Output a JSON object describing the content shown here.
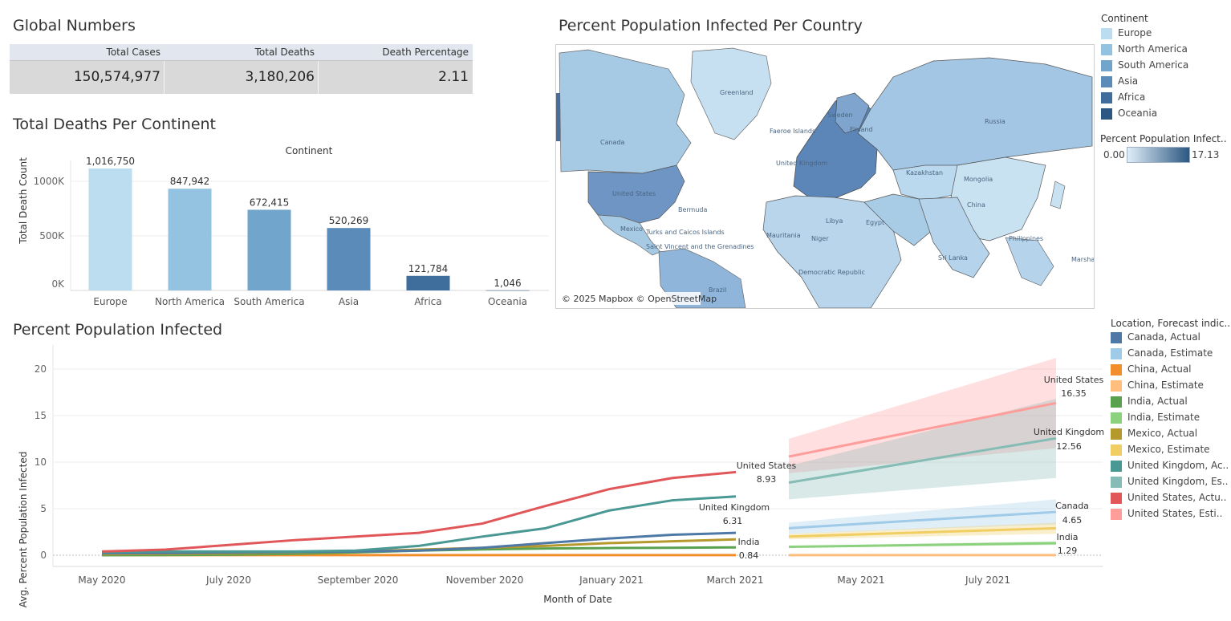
{
  "global": {
    "title": "Global Numbers",
    "headers": [
      "Total Cases",
      "Total Deaths",
      "Death Percentage"
    ],
    "values": [
      "150,574,977",
      "3,180,206",
      "2.11"
    ]
  },
  "deaths": {
    "title": "Total Deaths Per Continent",
    "column_header": "Continent",
    "ylabel": "Total Death Count",
    "yticks": [
      "1000K",
      "500K",
      "0K"
    ]
  },
  "map": {
    "title": "Percent Population Infected Per Country",
    "attribution": "© 2025 Mapbox © OpenStreetMap",
    "labels": [
      "Greenland",
      "Faeroe Islands",
      "Canada",
      "United States",
      "Bermuda",
      "Mexico",
      "Turks and Caicos Islands",
      "Saint Vincent and the Grenadines",
      "Brazil",
      "Russia",
      "Kazakhstan",
      "Mongolia",
      "China",
      "Philippines",
      "Sri Lanka",
      "Mauritania",
      "Niger",
      "Libya",
      "Egypt",
      "Democratic Republic",
      "Finland",
      "Sweden",
      "United Kingdom",
      "Marsha"
    ]
  },
  "continent_legend": {
    "title": "Continent",
    "items": [
      {
        "label": "Europe",
        "color": "#bcdcef"
      },
      {
        "label": "North America",
        "color": "#94c2e1"
      },
      {
        "label": "South America",
        "color": "#71a5cc"
      },
      {
        "label": "Asia",
        "color": "#5a8bb9"
      },
      {
        "label": "Africa",
        "color": "#3f6d9c"
      },
      {
        "label": "Oceania",
        "color": "#2b5782"
      }
    ]
  },
  "pct_legend": {
    "title": "Percent Population Infect..",
    "min": "0.00",
    "max": "17.13"
  },
  "infected": {
    "title": "Percent Population Infected",
    "ylabel": "Avg. Percent Population Infected",
    "xlabel": "Month of Date",
    "yticks": [
      "20",
      "15",
      "10",
      "5",
      "0"
    ],
    "xticks": [
      "May 2020",
      "July 2020",
      "September 2020",
      "November 2020",
      "January 2021",
      "March 2021",
      "May 2021",
      "July 2021"
    ],
    "annotations": [
      {
        "name": "United States",
        "value": "8.93"
      },
      {
        "name": "United Kingdom",
        "value": "6.31"
      },
      {
        "name": "India",
        "value": "0.84"
      },
      {
        "name": "United States",
        "value": "16.35"
      },
      {
        "name": "United Kingdom",
        "value": "12.56"
      },
      {
        "name": "Canada",
        "value": "4.65"
      },
      {
        "name": "India",
        "value": "1.29"
      }
    ]
  },
  "forecast_legend": {
    "title": "Location, Forecast indic..",
    "items": [
      {
        "label": "Canada, Actual",
        "color": "#4e79a7"
      },
      {
        "label": "Canada, Estimate",
        "color": "#a0cbe8"
      },
      {
        "label": "China, Actual",
        "color": "#f28e2b"
      },
      {
        "label": "China, Estimate",
        "color": "#ffbe7d"
      },
      {
        "label": "India, Actual",
        "color": "#59a14f"
      },
      {
        "label": "India, Estimate",
        "color": "#8cd17d"
      },
      {
        "label": "Mexico, Actual",
        "color": "#b6992d"
      },
      {
        "label": "Mexico, Estimate",
        "color": "#f1ce63"
      },
      {
        "label": "United Kingdom, Ac..",
        "color": "#499894"
      },
      {
        "label": "United Kingdom, Es..",
        "color": "#86bcb6"
      },
      {
        "label": "United States, Actu..",
        "color": "#e15759"
      },
      {
        "label": "United States, Esti..",
        "color": "#ff9d9a"
      }
    ]
  },
  "chart_data": [
    {
      "type": "bar",
      "title": "Total Deaths Per Continent",
      "xlabel": "Continent",
      "ylabel": "Total Death Count",
      "categories": [
        "Europe",
        "North America",
        "South America",
        "Asia",
        "Africa",
        "Oceania"
      ],
      "values": [
        1016750,
        847942,
        672415,
        520269,
        121784,
        1046
      ],
      "value_labels": [
        "1,016,750",
        "847,942",
        "672,415",
        "520,269",
        "121,784",
        "1,046"
      ],
      "colors": [
        "#bcdcef",
        "#94c2e1",
        "#71a5cc",
        "#5a8bb9",
        "#3f6d9c",
        "#2b5782"
      ],
      "ylim": [
        0,
        1150000
      ],
      "grid": true
    },
    {
      "type": "line",
      "title": "Percent Population Infected",
      "xlabel": "Month of Date",
      "ylabel": "Avg. Percent Population Infected",
      "ylim": [
        -1,
        22
      ],
      "xlim": [
        "2020-04-15",
        "2021-09-15"
      ],
      "grid": true,
      "legend": "right",
      "actual_x": [
        "2020-05",
        "2020-06",
        "2020-07",
        "2020-08",
        "2020-09",
        "2020-10",
        "2020-11",
        "2020-12",
        "2021-01",
        "2021-02",
        "2021-03"
      ],
      "series": [
        {
          "name": "United States, Actu..",
          "color": "#e15759",
          "kind": "actual",
          "values": [
            0.4,
            0.6,
            1.1,
            1.6,
            2.0,
            2.4,
            3.4,
            5.3,
            7.1,
            8.3,
            8.93
          ]
        },
        {
          "name": "United Kingdom, Ac..",
          "color": "#499894",
          "kind": "actual",
          "values": [
            0.3,
            0.4,
            0.4,
            0.4,
            0.5,
            1.0,
            2.0,
            2.9,
            4.8,
            5.9,
            6.31
          ]
        },
        {
          "name": "Canada, Actual",
          "color": "#4e79a7",
          "kind": "actual",
          "values": [
            0.2,
            0.25,
            0.3,
            0.35,
            0.4,
            0.5,
            0.8,
            1.3,
            1.8,
            2.2,
            2.4
          ]
        },
        {
          "name": "Mexico, Actual",
          "color": "#b6992d",
          "kind": "actual",
          "values": [
            0.1,
            0.15,
            0.2,
            0.3,
            0.4,
            0.6,
            0.8,
            1.0,
            1.3,
            1.5,
            1.7
          ]
        },
        {
          "name": "India, Actual",
          "color": "#59a14f",
          "kind": "actual",
          "values": [
            0.0,
            0.02,
            0.05,
            0.15,
            0.3,
            0.5,
            0.62,
            0.72,
            0.77,
            0.8,
            0.84
          ]
        },
        {
          "name": "China, Actual",
          "color": "#f28e2b",
          "kind": "actual",
          "values": [
            0.01,
            0.01,
            0.01,
            0.01,
            0.01,
            0.01,
            0.01,
            0.01,
            0.01,
            0.01,
            0.01
          ]
        }
      ],
      "estimates": [
        {
          "name": "United States, Esti..",
          "color": "#ff9d9a",
          "x": [
            "2021-04",
            "2021-08"
          ],
          "values": [
            10.6,
            16.35
          ],
          "lower": [
            8.8,
            11.5
          ],
          "upper": [
            12.5,
            21.2
          ]
        },
        {
          "name": "United Kingdom, Es..",
          "color": "#86bcb6",
          "x": [
            "2021-04",
            "2021-08"
          ],
          "values": [
            7.8,
            12.56
          ],
          "lower": [
            6.0,
            8.3
          ],
          "upper": [
            9.6,
            16.8
          ]
        },
        {
          "name": "Canada, Estimate",
          "color": "#a0cbe8",
          "x": [
            "2021-04",
            "2021-08"
          ],
          "values": [
            2.9,
            4.65
          ],
          "lower": [
            2.3,
            3.3
          ],
          "upper": [
            3.5,
            6.0
          ]
        },
        {
          "name": "Mexico, Estimate",
          "color": "#f1ce63",
          "x": [
            "2021-04",
            "2021-08"
          ],
          "values": [
            2.0,
            2.9
          ],
          "lower": [
            1.7,
            2.3
          ],
          "upper": [
            2.3,
            3.5
          ]
        },
        {
          "name": "India, Estimate",
          "color": "#8cd17d",
          "x": [
            "2021-04",
            "2021-08"
          ],
          "values": [
            0.9,
            1.29
          ],
          "lower": [
            0.8,
            1.1
          ],
          "upper": [
            1.0,
            1.5
          ]
        },
        {
          "name": "China, Estimate",
          "color": "#ffbe7d",
          "x": [
            "2021-04",
            "2021-08"
          ],
          "values": [
            0.01,
            0.01
          ],
          "lower": [
            0.0,
            0.0
          ],
          "upper": [
            0.05,
            0.05
          ]
        }
      ]
    }
  ]
}
